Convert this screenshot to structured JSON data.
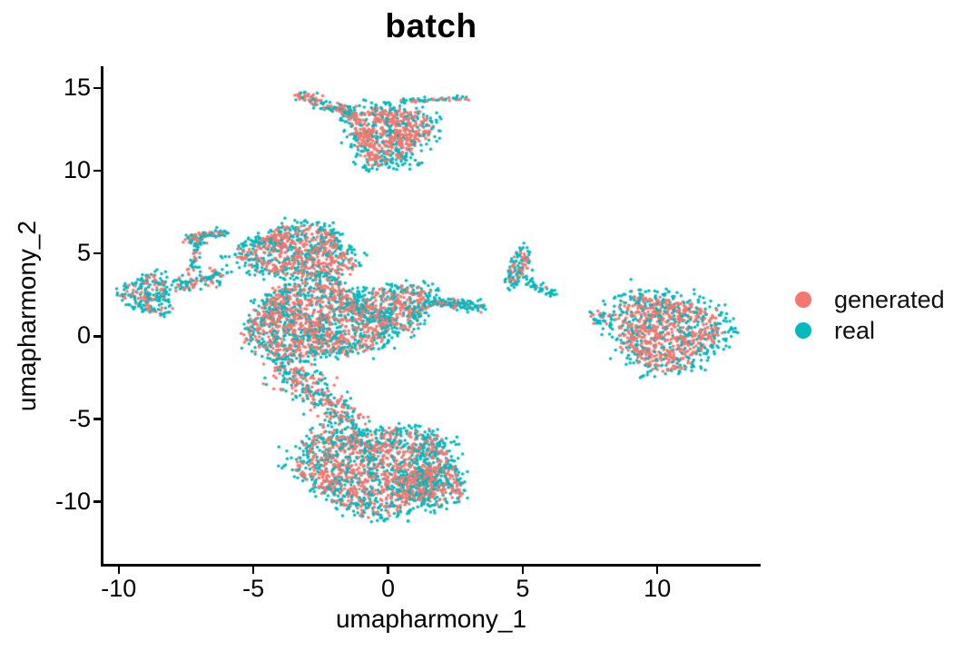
{
  "chart_data": {
    "type": "scatter",
    "title": "batch",
    "xlabel": "umapharmony_1",
    "ylabel": "umapharmony_2",
    "xlim": [
      -10.6,
      13.8
    ],
    "ylim": [
      -13.8,
      16.2
    ],
    "xticks": [
      -10,
      -5,
      0,
      5,
      10
    ],
    "yticks": [
      15,
      10,
      5,
      0,
      -5,
      -10
    ],
    "grid": false,
    "background": "#FFFFFF",
    "axis_color": "#000000",
    "legend_position": "right",
    "point_radius_px": 1.75,
    "seed": 7,
    "series": [
      {
        "name": "generated",
        "color": "#F7766E"
      },
      {
        "name": "real",
        "color": "#00B9BE"
      }
    ],
    "clusters": [
      {
        "name": "top-main",
        "shape": "blob",
        "cx": 0.0,
        "cy": 12.3,
        "rx": 1.85,
        "ry": 2.1,
        "rot": -10,
        "n": 700,
        "frac_generated": 0.62,
        "core_scale": 0.78,
        "wobble": 0.18
      },
      {
        "name": "top-bottom-fringe",
        "shape": "blob",
        "cx": 0.2,
        "cy": 10.6,
        "rx": 1.0,
        "ry": 0.55,
        "rot": 0,
        "n": 55,
        "frac_generated": 0.15,
        "core_scale": 1,
        "wobble": 0.3
      },
      {
        "name": "top-left-wing",
        "shape": "line",
        "x1": -3.35,
        "y1": 14.6,
        "x2": -1.1,
        "y2": 13.3,
        "width": 0.33,
        "n": 140,
        "frac_generated": 0.5
      },
      {
        "name": "top-right-arm",
        "shape": "line",
        "x1": 0.5,
        "y1": 14.2,
        "x2": 3.0,
        "y2": 14.4,
        "width": 0.13,
        "n": 60,
        "frac_generated": 0.38
      },
      {
        "name": "left-blob",
        "shape": "blob",
        "cx": -8.85,
        "cy": 2.5,
        "rx": 0.95,
        "ry": 1.4,
        "rot": 10,
        "n": 230,
        "frac_generated": 0.38,
        "core_scale": 0.85,
        "wobble": 0.25
      },
      {
        "name": "left-bridge",
        "shape": "line",
        "x1": -8.0,
        "y1": 2.9,
        "x2": -6.1,
        "y2": 3.7,
        "width": 0.45,
        "n": 110,
        "frac_generated": 0.35
      },
      {
        "name": "left-spike",
        "shape": "line",
        "x1": -7.3,
        "y1": 3.9,
        "x2": -7.0,
        "y2": 5.9,
        "width": 0.2,
        "n": 50,
        "frac_generated": 0.45
      },
      {
        "name": "left-top-nub",
        "shape": "line",
        "x1": -7.5,
        "y1": 5.9,
        "x2": -6.0,
        "y2": 6.3,
        "width": 0.28,
        "n": 90,
        "frac_generated": 0.45
      },
      {
        "name": "upper-lobe",
        "shape": "blob",
        "cx": -3.3,
        "cy": 5.0,
        "rx": 2.5,
        "ry": 1.8,
        "rot": -8,
        "n": 850,
        "frac_generated": 0.55,
        "core_scale": 0.82,
        "wobble": 0.15
      },
      {
        "name": "main-body",
        "shape": "blob",
        "cx": -2.7,
        "cy": 0.9,
        "rx": 2.75,
        "ry": 2.55,
        "rot": 0,
        "n": 1500,
        "frac_generated": 0.56,
        "core_scale": 0.9,
        "wobble": 0.14
      },
      {
        "name": "east-bulge",
        "shape": "blob",
        "cx": 0.4,
        "cy": 1.8,
        "rx": 1.5,
        "ry": 1.7,
        "rot": 0,
        "n": 430,
        "frac_generated": 0.45,
        "core_scale": 0.8,
        "wobble": 0.2
      },
      {
        "name": "mid-right-arm",
        "shape": "line",
        "x1": 1.6,
        "y1": 2.1,
        "x2": 3.5,
        "y2": 1.8,
        "width": 0.33,
        "n": 120,
        "frac_generated": 0.3
      },
      {
        "name": "south-neck",
        "shape": "line",
        "x1": -4.2,
        "y1": -1.3,
        "x2": -1.3,
        "y2": -5.3,
        "width": 0.85,
        "n": 340,
        "frac_generated": 0.52
      },
      {
        "name": "bottom-main",
        "shape": "blob",
        "cx": -0.5,
        "cy": -8.0,
        "rx": 3.1,
        "ry": 2.9,
        "rot": -12,
        "n": 1600,
        "frac_generated": 0.52,
        "core_scale": 0.87,
        "wobble": 0.12
      },
      {
        "name": "bottom-right-bulge",
        "shape": "blob",
        "cx": 1.7,
        "cy": -9.0,
        "rx": 1.4,
        "ry": 1.5,
        "rot": 0,
        "n": 330,
        "frac_generated": 0.5,
        "core_scale": 0.8,
        "wobble": 0.18
      },
      {
        "name": "bottom-right-nub",
        "shape": "blob",
        "cx": 1.5,
        "cy": -6.7,
        "rx": 0.5,
        "ry": 0.8,
        "rot": -20,
        "n": 55,
        "frac_generated": 0.12,
        "core_scale": 1,
        "wobble": 0.3
      },
      {
        "name": "five-strip",
        "shape": "blob",
        "cx": 4.85,
        "cy": 4.2,
        "rx": 0.45,
        "ry": 1.35,
        "rot": -10,
        "n": 120,
        "frac_generated": 0.35,
        "core_scale": 0.7,
        "wobble": 0.2
      },
      {
        "name": "five-tail",
        "shape": "line",
        "x1": 5.1,
        "y1": 3.3,
        "x2": 6.2,
        "y2": 2.5,
        "width": 0.28,
        "n": 40,
        "frac_generated": 0.05
      },
      {
        "name": "right-main",
        "shape": "blob",
        "cx": 10.3,
        "cy": 0.3,
        "rx": 2.35,
        "ry": 2.8,
        "rot": 14,
        "n": 1000,
        "frac_generated": 0.56,
        "core_scale": 0.78,
        "wobble": 0.12
      },
      {
        "name": "right-west-wisp",
        "shape": "blob",
        "cx": 7.95,
        "cy": 1.05,
        "rx": 0.45,
        "ry": 0.5,
        "rot": 0,
        "n": 35,
        "frac_generated": 0.15,
        "core_scale": 1,
        "wobble": 0.3
      }
    ]
  }
}
